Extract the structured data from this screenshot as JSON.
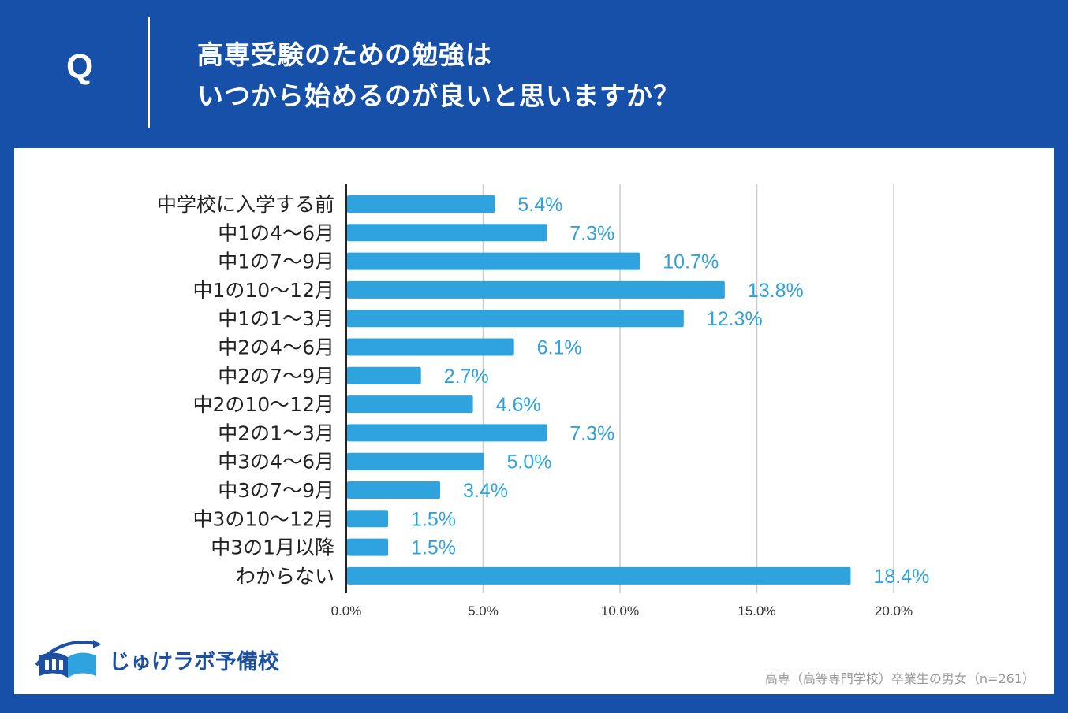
{
  "header": {
    "q_letter": "Q",
    "title_line1": "高専受験のための勉強は",
    "title_line2": "いつから始めるのが良いと思いますか？"
  },
  "colors": {
    "header_bg": "#1650a8",
    "bar": "#2ea3dd",
    "value_text": "#2ea3dd",
    "logo_blue": "#1d4fa3"
  },
  "chart_data": {
    "type": "bar",
    "orientation": "horizontal",
    "categories": [
      "中学校に入学する前",
      "中1の4〜6月",
      "中1の7〜9月",
      "中1の10〜12月",
      "中1の1〜3月",
      "中2の4〜6月",
      "中2の7〜9月",
      "中2の10〜12月",
      "中2の1〜3月",
      "中3の4〜6月",
      "中3の7〜9月",
      "中3の10〜12月",
      "中3の1月以降",
      "わからない"
    ],
    "values": [
      5.4,
      7.3,
      10.7,
      13.8,
      12.3,
      6.1,
      2.7,
      4.6,
      7.3,
      5.0,
      3.4,
      1.5,
      1.5,
      18.4
    ],
    "value_labels": [
      "5.4%",
      "7.3%",
      "10.7%",
      "13.8%",
      "12.3%",
      "6.1%",
      "2.7%",
      "4.6%",
      "7.3%",
      "5.0%",
      "3.4%",
      "1.5%",
      "1.5%",
      "18.4%"
    ],
    "xlim": [
      0,
      20
    ],
    "xticks": [
      0,
      5,
      10,
      15,
      20
    ],
    "xtick_labels": [
      "0.0%",
      "5.0%",
      "10.0%",
      "15.0%",
      "20.0%"
    ],
    "grid": true,
    "title": "",
    "xlabel": "",
    "ylabel": ""
  },
  "logo": {
    "name": "じゅけラボ予備校"
  },
  "footnote": "高専（高等専門学校）卒業生の男女（n=261）"
}
